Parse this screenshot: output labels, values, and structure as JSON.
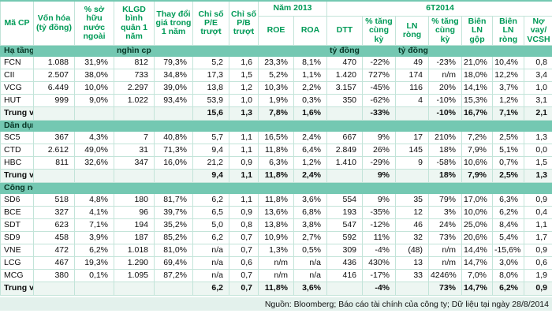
{
  "colors": {
    "accent_green": "#009a57",
    "section_band_teal": "#74c8b2",
    "median_row_tint": "#edf6f2",
    "footer_bg": "#e3f1ec",
    "cell_border": "#c3e4d9"
  },
  "table": {
    "header": {
      "simple_cols": [
        "Mã CP",
        "Vốn hóa (tỷ đồng)",
        "% sở hữu nước ngoài",
        "KLGD bình quân 1 năm",
        "Thay đổi giá trong 1 năm",
        "Chỉ số P/E trượt",
        "Chỉ số P/B trượt"
      ],
      "groups": [
        {
          "label": "Năm 2013",
          "cols": [
            "ROE",
            "ROA"
          ]
        },
        {
          "label": "6T2014",
          "cols": [
            "DTT",
            "% tăng cùng kỳ",
            "LN ròng",
            "% tăng cùng kỳ",
            "Biên LN gộp",
            "Biên LN ròng",
            "Nợ vay/ VCSH"
          ]
        }
      ]
    },
    "sections": [
      {
        "name": "Hạ tầng",
        "units": [
          "",
          "",
          "nghìn cp",
          "",
          "",
          "",
          "",
          "",
          "tỷ đồng",
          "",
          "tỷ đồng",
          "",
          "",
          "",
          ""
        ],
        "rows": [
          {
            "code": "FCN",
            "values": [
              "1.088",
              "31,9%",
              "812",
              "79,3%",
              "5,2",
              "1,6",
              "23,3%",
              "8,1%",
              "470",
              "-22%",
              "49",
              "-23%",
              "21,0%",
              "10,4%",
              "0,8"
            ]
          },
          {
            "code": "CII",
            "values": [
              "2.507",
              "38,0%",
              "733",
              "34,8%",
              "17,3",
              "1,5",
              "5,2%",
              "1,1%",
              "1.420",
              "727%",
              "174",
              "n/m",
              "18,0%",
              "12,2%",
              "3,4"
            ]
          },
          {
            "code": "VCG",
            "values": [
              "6.449",
              "10,0%",
              "2.297",
              "39,0%",
              "13,8",
              "1,2",
              "10,3%",
              "2,2%",
              "3.157",
              "-45%",
              "116",
              "20%",
              "14,1%",
              "3,7%",
              "1,0"
            ]
          },
          {
            "code": "HUT",
            "values": [
              "999",
              "9,0%",
              "1.022",
              "93,4%",
              "53,9",
              "1,0",
              "1,9%",
              "0,3%",
              "350",
              "-62%",
              "4",
              "-10%",
              "15,3%",
              "1,2%",
              "3,1"
            ]
          }
        ],
        "median": {
          "label": "Trung vị",
          "values": [
            "",
            "",
            "",
            "",
            "15,6",
            "1,3",
            "7,8%",
            "1,6%",
            "",
            "-33%",
            "",
            "-10%",
            "16,7%",
            "7,1%",
            "2,1"
          ]
        }
      },
      {
        "name": "Dân dụng",
        "units": [
          "",
          "",
          "",
          "",
          "",
          "",
          "",
          "",
          "",
          "",
          "",
          "",
          "",
          "",
          ""
        ],
        "rows": [
          {
            "code": "SC5",
            "values": [
              "367",
              "4,3%",
              "7",
              "40,8%",
              "5,7",
              "1,1",
              "16,5%",
              "2,4%",
              "667",
              "9%",
              "17",
              "210%",
              "7,2%",
              "2,5%",
              "1,3"
            ]
          },
          {
            "code": "CTD",
            "values": [
              "2.612",
              "49,0%",
              "31",
              "71,3%",
              "9,4",
              "1,1",
              "11,8%",
              "6,4%",
              "2.849",
              "26%",
              "145",
              "18%",
              "7,9%",
              "5,1%",
              "0,0"
            ]
          },
          {
            "code": "HBC",
            "values": [
              "811",
              "32,6%",
              "347",
              "16,0%",
              "21,2",
              "0,9",
              "6,3%",
              "1,2%",
              "1.410",
              "-29%",
              "9",
              "-58%",
              "10,6%",
              "0,7%",
              "1,5"
            ]
          }
        ],
        "median": {
          "label": "Trung vị",
          "values": [
            "",
            "",
            "",
            "",
            "9,4",
            "1,1",
            "11,8%",
            "2,4%",
            "",
            "9%",
            "",
            "18%",
            "7,9%",
            "2,5%",
            "1,3"
          ]
        }
      },
      {
        "name": "Công nghiệp",
        "units": [
          "",
          "",
          "",
          "",
          "",
          "",
          "",
          "",
          "",
          "",
          "",
          "",
          "",
          "",
          ""
        ],
        "rows": [
          {
            "code": "SD6",
            "values": [
              "518",
              "4,8%",
              "180",
              "81,7%",
              "6,2",
              "1,1",
              "11,8%",
              "3,6%",
              "554",
              "9%",
              "35",
              "79%",
              "17,0%",
              "6,3%",
              "0,9"
            ]
          },
          {
            "code": "BCE",
            "values": [
              "327",
              "4,1%",
              "96",
              "39,7%",
              "6,5",
              "0,9",
              "13,6%",
              "6,8%",
              "193",
              "-35%",
              "12",
              "3%",
              "10,0%",
              "6,2%",
              "0,4"
            ]
          },
          {
            "code": "SDT",
            "values": [
              "623",
              "7,1%",
              "194",
              "35,2%",
              "5,0",
              "0,8",
              "13,8%",
              "3,8%",
              "547",
              "-12%",
              "46",
              "24%",
              "25,0%",
              "8,4%",
              "1,1"
            ]
          },
          {
            "code": "SD9",
            "values": [
              "458",
              "3,9%",
              "187",
              "85,2%",
              "6,2",
              "0,7",
              "10,9%",
              "2,7%",
              "592",
              "11%",
              "32",
              "73%",
              "20,6%",
              "5,4%",
              "1,7"
            ]
          },
          {
            "code": "VNE",
            "values": [
              "472",
              "6,2%",
              "1.018",
              "81,0%",
              "n/a",
              "0,7",
              "1,3%",
              "0,5%",
              "309",
              "-4%",
              "(48)",
              "n/m",
              "14,4%",
              "-15,6%",
              "0,9"
            ]
          },
          {
            "code": "LCG",
            "values": [
              "467",
              "19,3%",
              "1.290",
              "69,4%",
              "n/a",
              "0,6",
              "n/m",
              "n/a",
              "436",
              "430%",
              "13",
              "n/m",
              "14,7%",
              "3,0%",
              "0,6"
            ]
          },
          {
            "code": "MCG",
            "values": [
              "380",
              "0,1%",
              "1.095",
              "87,2%",
              "n/a",
              "0,7",
              "n/m",
              "n/a",
              "416",
              "-17%",
              "33",
              "4246%",
              "7,0%",
              "8,0%",
              "1,9"
            ]
          }
        ],
        "median": {
          "label": "Trung vị",
          "values": [
            "",
            "",
            "",
            "",
            "6,2",
            "0,7",
            "11,8%",
            "3,6%",
            "",
            "-4%",
            "",
            "73%",
            "14,7%",
            "6,2%",
            "0,9"
          ]
        }
      }
    ]
  },
  "footer": {
    "source": "Nguồn: Bloomberg; Báo cáo tài chính của công ty; Dữ liệu tại ngày 28/8/2014"
  }
}
